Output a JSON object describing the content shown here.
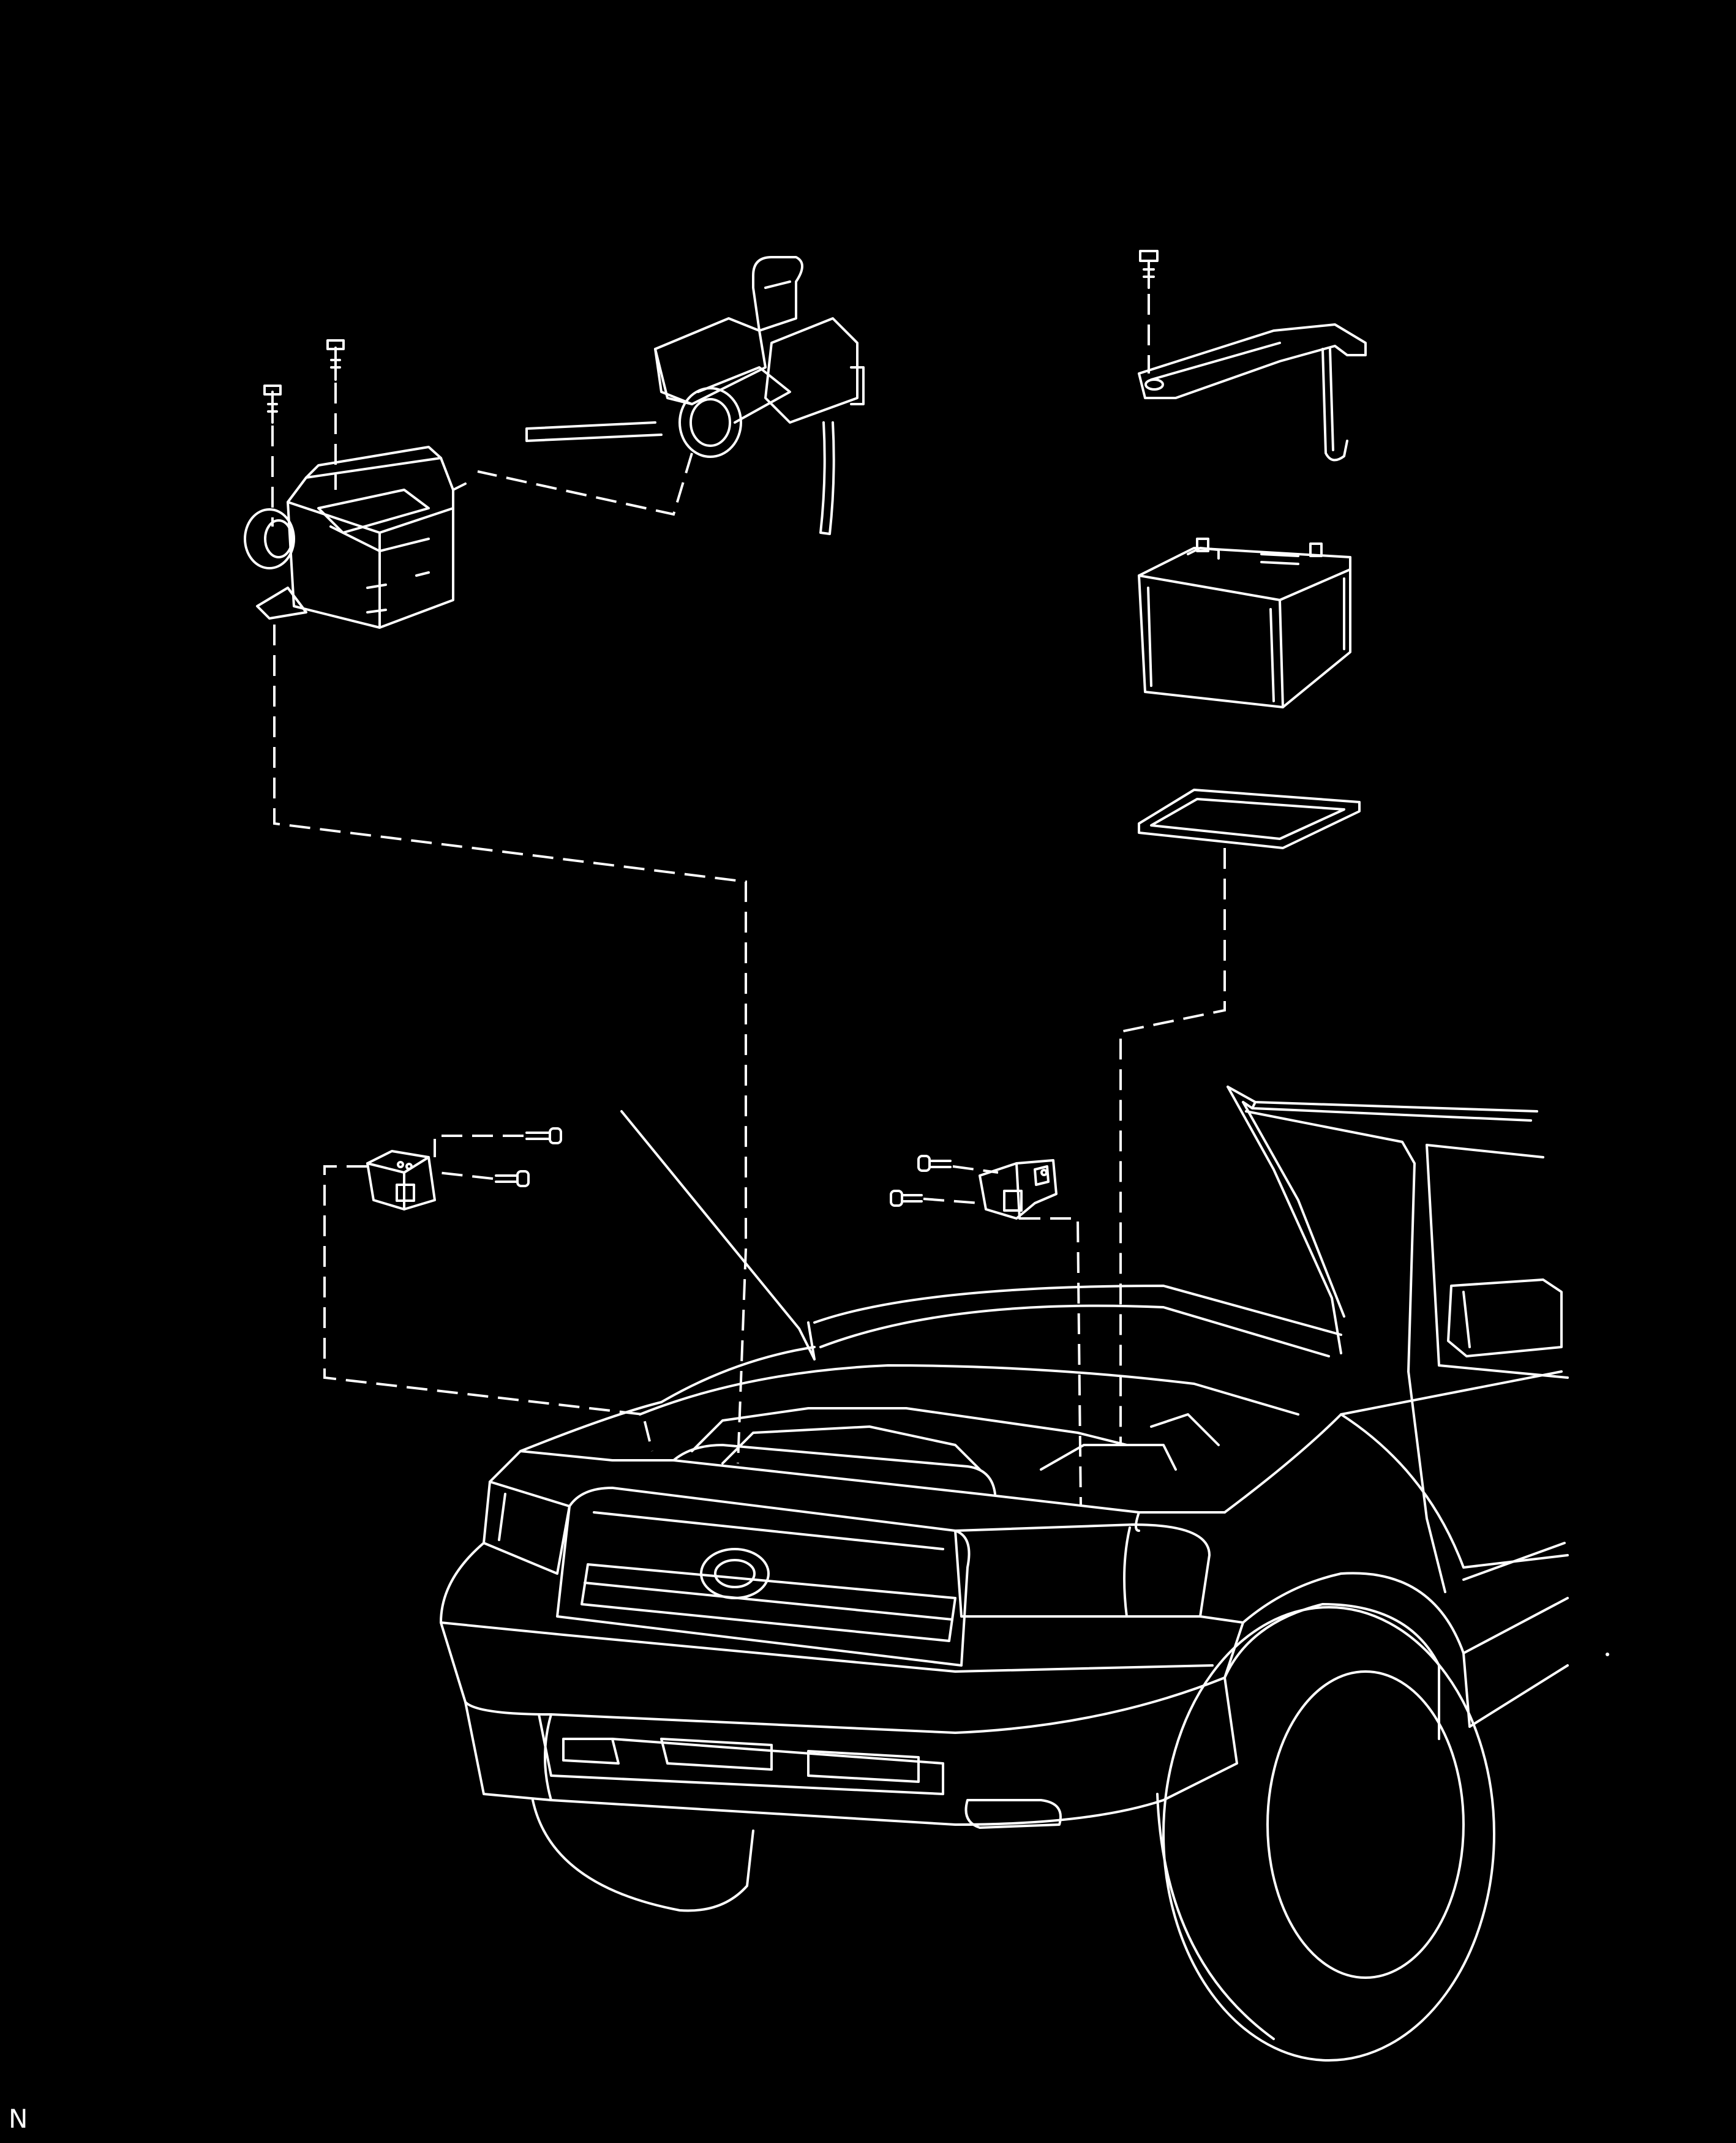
{
  "figure": {
    "corner_label": "N",
    "components": [
      "air-cleaner-case",
      "air-intake-hose",
      "battery-hold-down-clamp",
      "battery",
      "battery-tray",
      "left-relay-bracket",
      "right-relay-bracket",
      "vehicle-front-view"
    ]
  },
  "colors": {
    "background": "#000000",
    "line": "#ffffff"
  }
}
